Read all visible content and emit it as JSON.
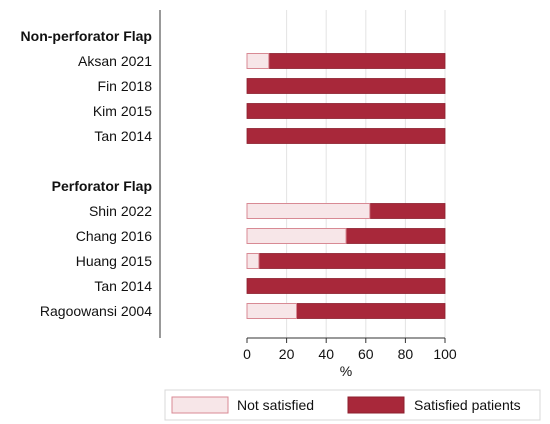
{
  "chart_data": {
    "type": "bar",
    "orientation": "horizontal",
    "stacked": true,
    "groups": [
      {
        "label": "Non-perforator Flap",
        "rows": [
          {
            "label": "Aksan 2021",
            "not_satisfied": 11,
            "satisfied": 89
          },
          {
            "label": "Fin 2018",
            "not_satisfied": 0,
            "satisfied": 100
          },
          {
            "label": "Kim 2015",
            "not_satisfied": 0,
            "satisfied": 100
          },
          {
            "label": "Tan 2014",
            "not_satisfied": 0,
            "satisfied": 100
          }
        ]
      },
      {
        "label": "Perforator Flap",
        "rows": [
          {
            "label": "Shin 2022",
            "not_satisfied": 62,
            "satisfied": 38
          },
          {
            "label": "Chang 2016",
            "not_satisfied": 50,
            "satisfied": 50
          },
          {
            "label": "Huang 2015",
            "not_satisfied": 6,
            "satisfied": 94
          },
          {
            "label": "Tan 2014",
            "not_satisfied": 0,
            "satisfied": 100
          },
          {
            "label": "Ragoowansi 2004",
            "not_satisfied": 25,
            "satisfied": 75
          }
        ]
      }
    ],
    "xlabel": "%",
    "xlim": [
      0,
      100
    ],
    "xticks": [
      0,
      20,
      40,
      60,
      80,
      100
    ],
    "grid": true,
    "legend": {
      "position": "bottom",
      "entries": [
        {
          "key": "not_satisfied",
          "label": "Not satisfied",
          "color": "#f7e6e8",
          "border": "#d88a94"
        },
        {
          "key": "satisfied",
          "label": "Satisfied patients",
          "color": "#a8283a",
          "border": "#8c1f2e"
        }
      ]
    },
    "colors": {
      "gridline": "#e3e3e3",
      "axis": "#333333"
    }
  }
}
